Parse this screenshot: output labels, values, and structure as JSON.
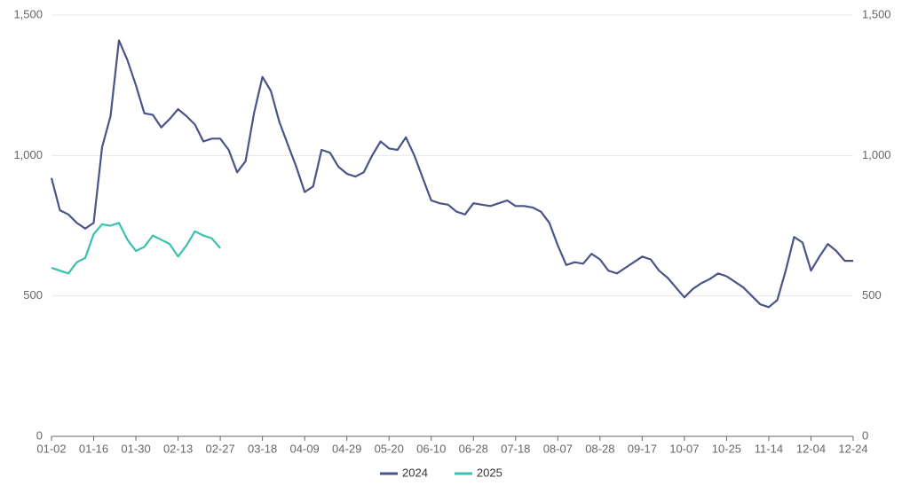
{
  "chart_data": {
    "type": "line",
    "categories": [
      "01-02",
      null,
      null,
      null,
      null,
      "01-16",
      null,
      null,
      null,
      null,
      "01-30",
      null,
      null,
      null,
      null,
      "02-13",
      null,
      null,
      null,
      null,
      "02-27",
      null,
      null,
      null,
      null,
      "03-18",
      null,
      null,
      null,
      null,
      "04-09",
      null,
      null,
      null,
      null,
      "04-29",
      null,
      null,
      null,
      null,
      "05-20",
      null,
      null,
      null,
      null,
      "06-10",
      null,
      null,
      null,
      null,
      "06-28",
      null,
      null,
      null,
      null,
      "07-18",
      null,
      null,
      null,
      null,
      "08-07",
      null,
      null,
      null,
      null,
      "08-28",
      null,
      null,
      null,
      null,
      "09-17",
      null,
      null,
      null,
      null,
      "10-07",
      null,
      null,
      null,
      null,
      "10-25",
      null,
      null,
      null,
      null,
      "11-14",
      null,
      null,
      null,
      null,
      "12-04",
      null,
      null,
      null,
      null,
      "12-24"
    ],
    "series": [
      {
        "name": "2024",
        "color": "#4a5488",
        "values": [
          920,
          805,
          790,
          760,
          740,
          760,
          1030,
          1140,
          1410,
          1340,
          1250,
          1150,
          1145,
          1100,
          1130,
          1165,
          1140,
          1110,
          1050,
          1060,
          1060,
          1020,
          940,
          980,
          1150,
          1280,
          1230,
          1120,
          1040,
          960,
          870,
          890,
          1020,
          1010,
          960,
          935,
          925,
          940,
          1000,
          1050,
          1025,
          1020,
          1065,
          1000,
          920,
          840,
          830,
          825,
          800,
          790,
          830,
          825,
          820,
          830,
          840,
          820,
          820,
          815,
          800,
          760,
          680,
          610,
          620,
          615,
          650,
          630,
          590,
          580,
          600,
          620,
          640,
          630,
          590,
          565,
          530,
          495,
          525,
          545,
          560,
          580,
          570,
          550,
          530,
          500,
          470,
          460,
          485,
          590,
          710,
          690,
          590,
          640,
          685,
          660,
          625,
          625
        ]
      },
      {
        "name": "2025",
        "color": "#3dbfb0",
        "values": [
          600,
          590,
          580,
          620,
          635,
          720,
          755,
          750,
          760,
          700,
          660,
          675,
          715,
          700,
          685,
          640,
          680,
          730,
          715,
          705,
          670,
          null,
          null,
          null,
          null,
          null,
          null,
          null,
          null,
          null,
          null,
          null,
          null,
          null,
          null,
          null,
          null,
          null,
          null,
          null,
          null,
          null,
          null,
          null,
          null,
          null,
          null,
          null,
          null,
          null,
          null,
          null,
          null,
          null,
          null,
          null,
          null,
          null,
          null,
          null,
          null,
          null,
          null,
          null,
          null,
          null,
          null,
          null,
          null,
          null,
          null,
          null,
          null,
          null,
          null,
          null,
          null,
          null,
          null,
          null,
          null,
          null,
          null,
          null,
          null,
          null,
          null,
          null,
          null,
          null,
          null,
          null,
          null,
          null,
          null,
          null
        ]
      }
    ],
    "ylim": [
      0,
      1500
    ],
    "yticks": [
      0,
      500,
      {
        "value": 1000,
        "label": "1,000"
      },
      {
        "value": 1500,
        "label": "1,500"
      }
    ],
    "y2lim": [
      0,
      1500
    ],
    "y2ticks": [
      0,
      500,
      {
        "value": 1000,
        "label": "1,000"
      },
      {
        "value": 1500,
        "label": "1,500"
      }
    ],
    "grid": true,
    "legend": "bottom"
  }
}
